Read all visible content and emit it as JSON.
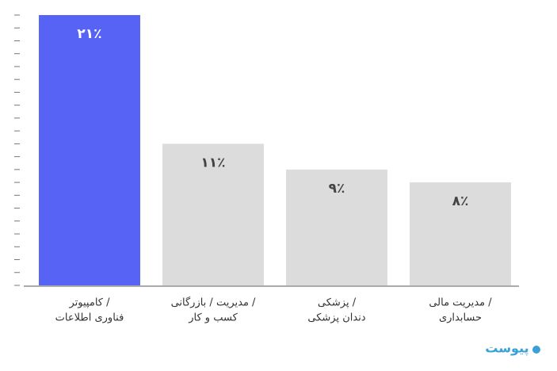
{
  "chart_data": {
    "type": "bar",
    "categories": [
      [
        "کامپیوتر /",
        "فناوری اطلاعات"
      ],
      [
        "مدیریت / بازرگانی /",
        "کسب و کار"
      ],
      [
        "پزشکی /",
        "دندان پزشکی"
      ],
      [
        "مدیریت مالی /",
        "حسابداری"
      ]
    ],
    "values": [
      21,
      11,
      9,
      8
    ],
    "value_labels": [
      "۲۱٪",
      "۱۱٪",
      "۹٪",
      "۸٪"
    ],
    "colors": [
      "#5663f5",
      "#dcdcdc",
      "#dcdcdc",
      "#dcdcdc"
    ],
    "ylim": [
      0,
      21
    ],
    "yticks": [
      0,
      1,
      2,
      3,
      4,
      5,
      6,
      7,
      8,
      9,
      10,
      11,
      12,
      13,
      14,
      15,
      16,
      17,
      18,
      19,
      20,
      21
    ],
    "watermark": "پیوست"
  }
}
